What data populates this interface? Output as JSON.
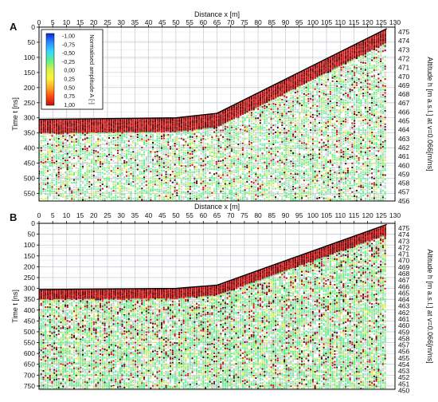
{
  "chart_data": [
    {
      "type": "heatmap",
      "panel_label": "A",
      "xlabel": "Distance x [m]",
      "ylabel_left": "Time t [ns]",
      "ylabel_right": "Altitude h [m a.s.l.] at v=0.066[m/ns]",
      "x_ticks": [
        0,
        5,
        10,
        15,
        20,
        25,
        30,
        35,
        40,
        45,
        50,
        55,
        60,
        65,
        70,
        75,
        80,
        85,
        90,
        95,
        100,
        105,
        110,
        115,
        120,
        125,
        130
      ],
      "xlim": [
        0,
        130
      ],
      "y_ticks": [
        0,
        50,
        100,
        150,
        200,
        250,
        300,
        350,
        400,
        450,
        500,
        550
      ],
      "ylim": [
        0,
        575
      ],
      "y_right_ticks": [
        475,
        474,
        473,
        472,
        471,
        470,
        469,
        468,
        467,
        466,
        465,
        464,
        463,
        462,
        461,
        460,
        459,
        458,
        457,
        456
      ],
      "surface": {
        "x": [
          0,
          50,
          65,
          127
        ],
        "t": [
          305,
          300,
          285,
          5
        ]
      },
      "legend": {
        "title": "Normalised amplitude A [-]",
        "position": "top-left",
        "labels": [
          "-1,00",
          "-0,75",
          "-0,50",
          "-0,25",
          "0,00",
          "0,25",
          "0,50",
          "0,75",
          "1,00"
        ],
        "colors": [
          "#0a2ad8",
          "#2b8cff",
          "#36d8ff",
          "#5ef08a",
          "#d7f04a",
          "#fff23a",
          "#ffb020",
          "#ff4a10",
          "#c21010"
        ]
      }
    },
    {
      "type": "heatmap",
      "panel_label": "B",
      "xlabel": "Distance x [m]",
      "ylabel_left": "Time t [ns]",
      "ylabel_right": "Altitude h [m a.s.l.] at v=0.066[m/ns]",
      "x_ticks": [
        0,
        5,
        10,
        15,
        20,
        25,
        30,
        35,
        40,
        45,
        50,
        55,
        60,
        65,
        70,
        75,
        80,
        85,
        90,
        95,
        100,
        105,
        110,
        115,
        120,
        125,
        130
      ],
      "xlim": [
        0,
        130
      ],
      "y_ticks": [
        0,
        50,
        100,
        150,
        200,
        250,
        300,
        350,
        400,
        450,
        500,
        550,
        600,
        650,
        700,
        750
      ],
      "ylim": [
        0,
        765
      ],
      "y_right_ticks": [
        475,
        474,
        473,
        472,
        471,
        470,
        469,
        468,
        467,
        466,
        465,
        464,
        463,
        462,
        461,
        460,
        459,
        458,
        457,
        456,
        455,
        454,
        453,
        452,
        451,
        450
      ],
      "surface": {
        "x": [
          0,
          50,
          65,
          127
        ],
        "t": [
          305,
          300,
          285,
          5
        ]
      }
    }
  ]
}
